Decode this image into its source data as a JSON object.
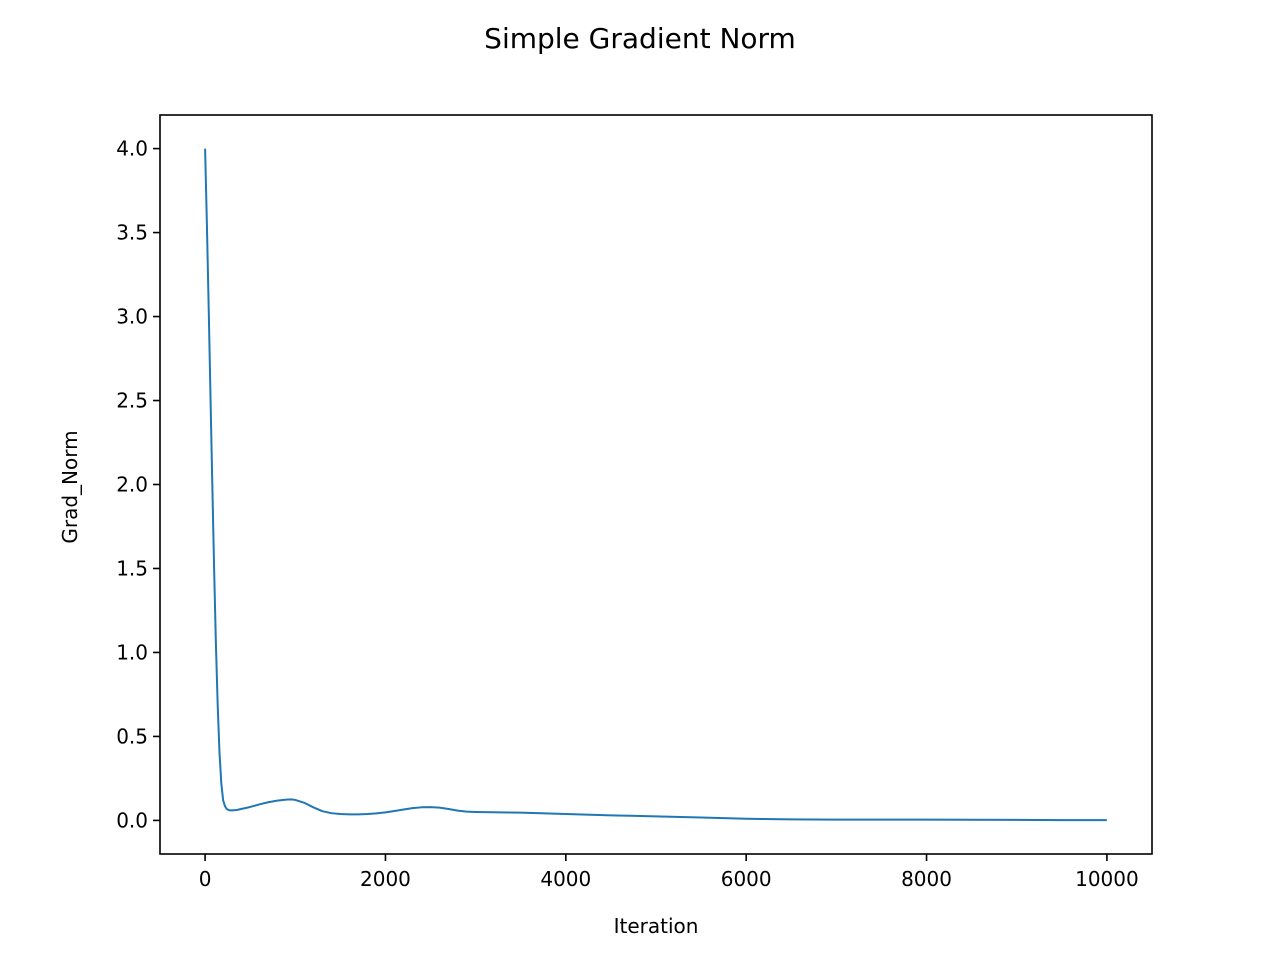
{
  "chart_data": {
    "type": "line",
    "title": "Simple Gradient Norm",
    "xlabel": "Iteration",
    "ylabel": "Grad_Norm",
    "xlim": [
      -500,
      10500
    ],
    "ylim": [
      -0.2,
      4.2
    ],
    "x_ticks": [
      0,
      2000,
      4000,
      6000,
      8000,
      10000
    ],
    "x_tick_labels": [
      "0",
      "2000",
      "4000",
      "6000",
      "8000",
      "10000"
    ],
    "y_ticks": [
      0.0,
      0.5,
      1.0,
      1.5,
      2.0,
      2.5,
      3.0,
      3.5,
      4.0
    ],
    "y_tick_labels": [
      "0.0",
      "0.5",
      "1.0",
      "1.5",
      "2.0",
      "2.5",
      "3.0",
      "3.5",
      "4.0"
    ],
    "grid": false,
    "series": [
      {
        "color": "#1f77b4",
        "x": [
          0,
          20,
          40,
          60,
          80,
          100,
          120,
          140,
          160,
          180,
          200,
          220,
          240,
          260,
          280,
          300,
          350,
          400,
          500,
          600,
          700,
          800,
          900,
          950,
          1000,
          1100,
          1200,
          1300,
          1400,
          1500,
          1600,
          1700,
          1800,
          1900,
          2000,
          2100,
          2200,
          2300,
          2400,
          2500,
          2600,
          2700,
          2800,
          2900,
          3000,
          3500,
          4000,
          4500,
          5000,
          5500,
          6000,
          6500,
          7000,
          7500,
          8000,
          8500,
          9000,
          9500,
          10000
        ],
        "y": [
          4.0,
          3.55,
          3.05,
          2.52,
          2.0,
          1.5,
          1.05,
          0.68,
          0.4,
          0.22,
          0.12,
          0.085,
          0.068,
          0.062,
          0.06,
          0.06,
          0.062,
          0.068,
          0.08,
          0.095,
          0.108,
          0.118,
          0.124,
          0.125,
          0.122,
          0.105,
          0.078,
          0.055,
          0.043,
          0.038,
          0.036,
          0.036,
          0.038,
          0.042,
          0.048,
          0.056,
          0.065,
          0.073,
          0.078,
          0.079,
          0.076,
          0.068,
          0.058,
          0.052,
          0.05,
          0.046,
          0.038,
          0.03,
          0.024,
          0.017,
          0.01,
          0.006,
          0.005,
          0.005,
          0.005,
          0.004,
          0.003,
          0.002,
          0.002
        ]
      }
    ]
  }
}
